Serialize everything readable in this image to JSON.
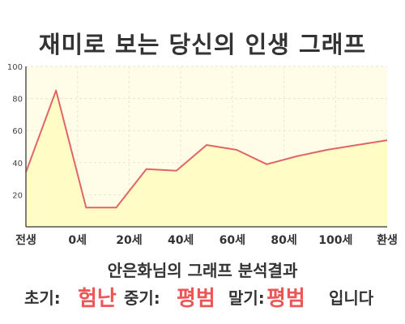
{
  "title": "재미로 보는 당신의 인생 그래프",
  "subtitle": "안은화님의 그래프 분석결과",
  "result": {
    "early_label": "초기:",
    "early_value": "험난",
    "mid_label": "중기:",
    "mid_value": "평범",
    "late_label": "말기:",
    "late_value": "평범",
    "ending": "입니다"
  },
  "colors": {
    "line": "#e06666",
    "area": "#fffcc6",
    "plot_bg": "#fffde8",
    "highlight": "#ee5555"
  },
  "chart_data": {
    "type": "area",
    "title": "재미로 보는 당신의 인생 그래프",
    "xlabel": "",
    "ylabel": "",
    "x_tick_labels": [
      "전생",
      "0세",
      "20세",
      "40세",
      "60세",
      "80세",
      "100세",
      "환생"
    ],
    "y_ticks": [
      20,
      40,
      60,
      80,
      100
    ],
    "ylim": [
      0,
      100
    ],
    "grid": true,
    "series": [
      {
        "values": [
          34,
          85,
          12,
          12,
          36,
          35,
          51,
          48,
          39,
          44,
          48,
          51,
          54
        ]
      }
    ]
  }
}
